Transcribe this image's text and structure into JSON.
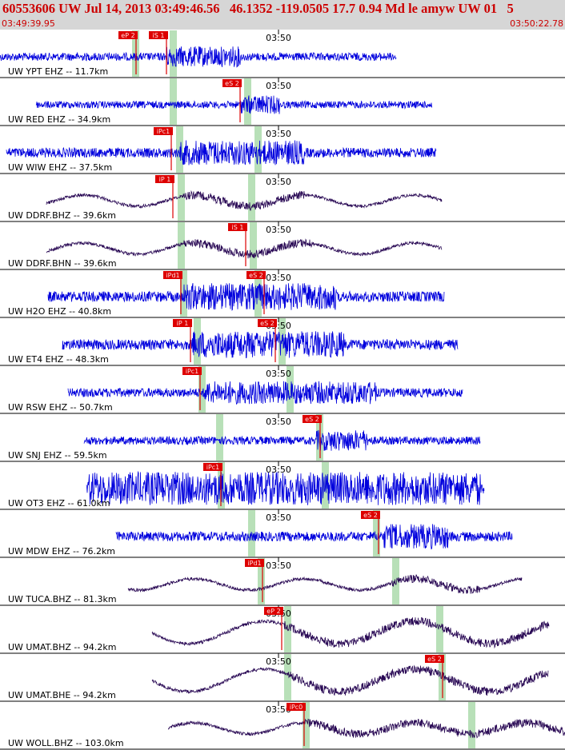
{
  "header": {
    "title": "60553606 UW Jul 14, 2013 03:49:46.56   46.1352 -119.0505 17.7 0.94 Md le amyw UW 01   5",
    "start_time": "03:49:39.95",
    "end_time": "03:50:22.78"
  },
  "time_tick_label": "03:50",
  "colors": {
    "header_bg": "#d6d6d6",
    "header_text": "#cc0000",
    "blue": "#0000dd",
    "dark": "#2a0a55",
    "pick": "#dd0000",
    "window": "#b8e0b8"
  },
  "traces": [
    {
      "label": "UW YPT EHZ -- 11.7km",
      "color": "blue",
      "picks": [
        "eP 2",
        "iS 1"
      ]
    },
    {
      "label": "UW RED EHZ -- 34.9km",
      "color": "blue",
      "picks": [
        "eS 2"
      ]
    },
    {
      "label": "UW WIW EHZ -- 37.5km",
      "color": "blue",
      "picks": [
        "iPc1"
      ]
    },
    {
      "label": "UW DDRF.BHZ -- 39.6km",
      "color": "dark",
      "picks": [
        "iP 1"
      ]
    },
    {
      "label": "UW DDRF.BHN -- 39.6km",
      "color": "dark",
      "picks": [
        "iS 1"
      ]
    },
    {
      "label": "UW H2O EHZ -- 40.8km",
      "color": "blue",
      "picks": [
        "iPd1",
        "eS 2"
      ]
    },
    {
      "label": "UW ET4 EHZ -- 48.3km",
      "color": "blue",
      "picks": [
        "iP 1",
        "eS 2"
      ]
    },
    {
      "label": "UW RSW EHZ -- 50.7km",
      "color": "blue",
      "picks": [
        "iPc1"
      ]
    },
    {
      "label": "UW SNJ EHZ -- 59.5km",
      "color": "blue",
      "picks": [
        "eS 2"
      ]
    },
    {
      "label": "UW OT3 EHZ -- 61.0km",
      "color": "blue",
      "picks": [
        "iPc1"
      ]
    },
    {
      "label": "UW MDW EHZ -- 76.2km",
      "color": "blue",
      "picks": [
        "eS 2"
      ]
    },
    {
      "label": "UW TUCA.BHZ -- 81.3km",
      "color": "dark",
      "picks": [
        "iPd1"
      ]
    },
    {
      "label": "UW UMAT.BHZ -- 94.2km",
      "color": "dark",
      "picks": [
        "eP 2"
      ]
    },
    {
      "label": "UW UMAT.BHE -- 94.2km",
      "color": "dark",
      "picks": [
        "eS 2"
      ]
    },
    {
      "label": "UW WOLL.BHZ -- 103.0km",
      "color": "dark",
      "picks": [
        "iPc0"
      ]
    }
  ]
}
